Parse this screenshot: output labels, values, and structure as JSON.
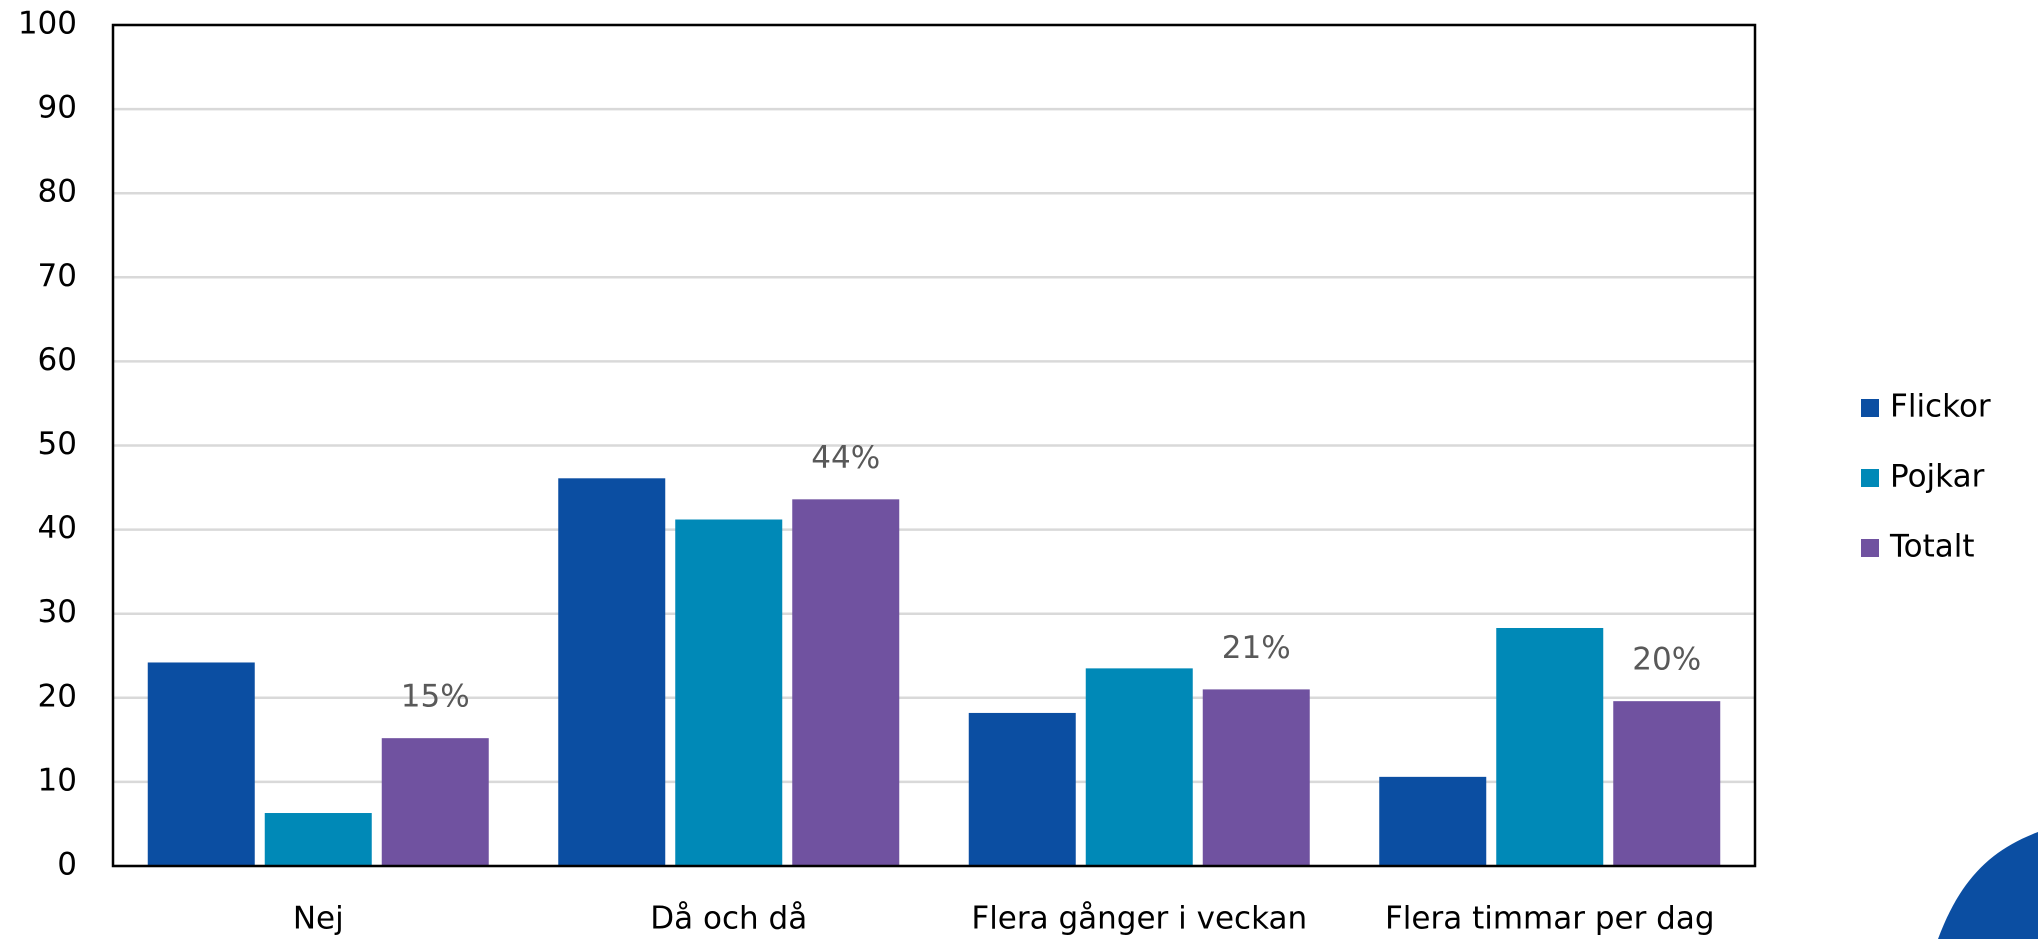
{
  "chart_data": {
    "type": "bar",
    "categories": [
      "Nej",
      "Då och då",
      "Flera gånger i veckan",
      "Flera timmar per dag"
    ],
    "series": [
      {
        "name": "Flickor",
        "color": "#0b4ea2",
        "values": [
          24.2,
          46.1,
          18.2,
          10.6
        ]
      },
      {
        "name": "Pojkar",
        "color": "#0089b7",
        "values": [
          6.3,
          41.2,
          23.5,
          28.3
        ]
      },
      {
        "name": "Totalt",
        "color": "#7052a0",
        "values": [
          15.2,
          43.6,
          21,
          19.6
        ],
        "value_labels": [
          "15%",
          "44%",
          "21%",
          "20%"
        ]
      }
    ],
    "ylim": [
      0,
      100
    ],
    "yticks": [
      0,
      10,
      20,
      30,
      40,
      50,
      60,
      70,
      80,
      90,
      100
    ],
    "grid": true,
    "legend": "right"
  }
}
